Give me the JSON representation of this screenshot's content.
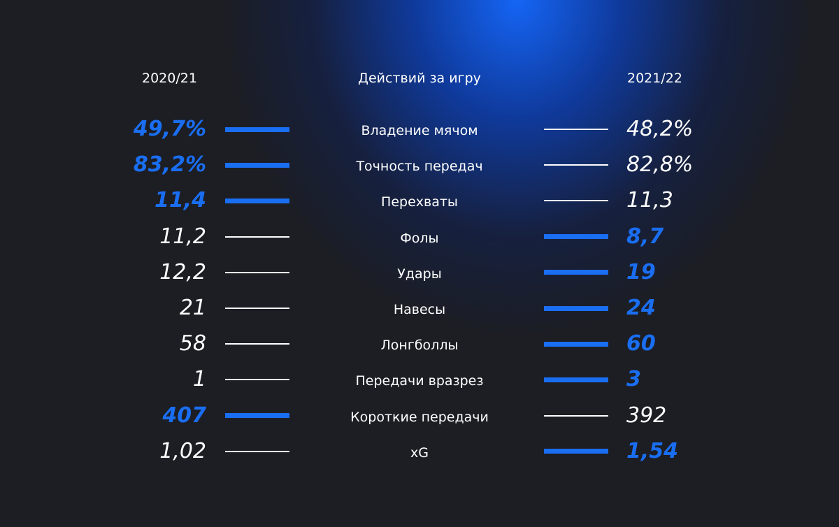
{
  "header": {
    "left": "2020/21",
    "center": "Действий за игру",
    "right": "2021/22"
  },
  "highlight_color": "#1a6ef2",
  "rows": [
    {
      "label": "Владение мячом",
      "left": "49,7%",
      "right": "48,2%",
      "highlight": "left"
    },
    {
      "label": "Точность передач",
      "left": "83,2%",
      "right": "82,8%",
      "highlight": "left"
    },
    {
      "label": "Перехваты",
      "left": "11,4",
      "right": "11,3",
      "highlight": "left"
    },
    {
      "label": "Фолы",
      "left": "11,2",
      "right": "8,7",
      "highlight": "right"
    },
    {
      "label": "Удары",
      "left": "12,2",
      "right": "19",
      "highlight": "right"
    },
    {
      "label": "Навесы",
      "left": "21",
      "right": "24",
      "highlight": "right"
    },
    {
      "label": "Лонгболлы",
      "left": "58",
      "right": "60",
      "highlight": "right"
    },
    {
      "label": "Передачи вразрез",
      "left": "1",
      "right": "3",
      "highlight": "right"
    },
    {
      "label": "Короткие передачи",
      "left": "407",
      "right": "392",
      "highlight": "left"
    },
    {
      "label": "xG",
      "left": "1,02",
      "right": "1,54",
      "highlight": "right"
    }
  ]
}
